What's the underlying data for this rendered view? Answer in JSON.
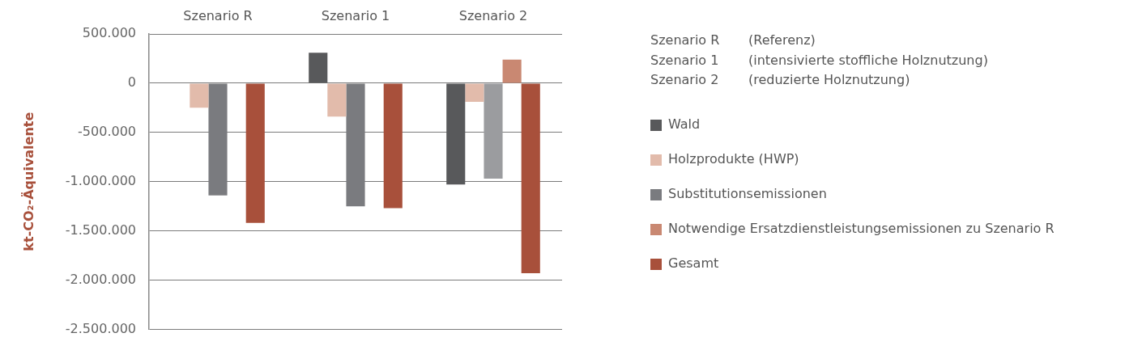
{
  "chart_data": {
    "type": "bar",
    "categories": [
      "Szenario R",
      "Szenario 1",
      "Szenario 2"
    ],
    "series": [
      {
        "name": "Wald",
        "color": "#58595b",
        "values": [
          null,
          310000,
          -1030000
        ]
      },
      {
        "name": "Holzprodukte (HWP)",
        "color": "#e2bbab",
        "values": [
          -250000,
          -340000,
          -190000
        ]
      },
      {
        "name": "Substitutionsemissionen",
        "color": "#7a7b7f",
        "colors": [
          "#7a7b7f",
          "#7a7b7f",
          "#9b9c9f"
        ],
        "values": [
          -1140000,
          -1250000,
          -970000
        ]
      },
      {
        "name": "Notwendige Ersatzdienstleistungsemissionen zu Szenario R",
        "color": "#c98872",
        "values": [
          null,
          null,
          240000
        ]
      },
      {
        "name": "Gesamt",
        "color": "#a8503b",
        "values": [
          -1420000,
          -1270000,
          -1930000
        ]
      }
    ],
    "ylabel": "kt-CO₂-Äquivalente",
    "ylim": [
      -2500000,
      500000
    ],
    "yticks": [
      {
        "value": -2500000,
        "label": "-2.500.000"
      },
      {
        "value": -2000000,
        "label": "-2.000.000"
      },
      {
        "value": -1500000,
        "label": "-1.500.000"
      },
      {
        "value": -1000000,
        "label": "-1.000.000"
      },
      {
        "value": -500000,
        "label": "-500.000"
      },
      0,
      {
        "value": 500000,
        "label": "500.000"
      }
    ],
    "grid": "y",
    "legend": "right",
    "annotations": [
      "Szenario R\t(Referenz)",
      "Szenario 1\t(intensivierte stoffliche Holznutzung)",
      "Szenario 2\t(reduzierte Holznutzung)"
    ]
  }
}
